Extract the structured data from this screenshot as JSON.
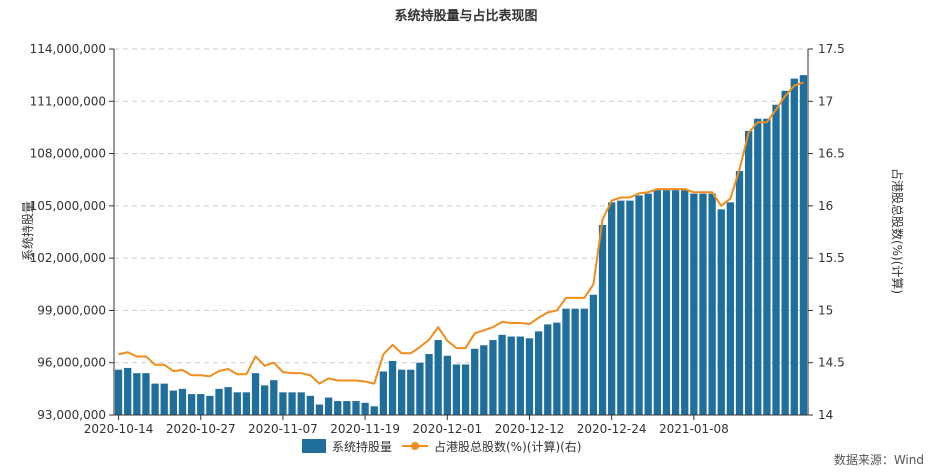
{
  "chart_data": {
    "type": "bar",
    "title": "系统持股量与占比表现图",
    "ylabel": "系统持股量",
    "y2label": "占港股总股数(%)(计算)",
    "source": "数据来源：Wind",
    "legend": {
      "placement": "bottom-center"
    },
    "grid": true,
    "colors": {
      "bar": "#1f6e9c",
      "line": "#f28c1a"
    },
    "ylim": [
      93000000,
      114000000
    ],
    "y_ticks": [
      93000000,
      96000000,
      99000000,
      102000000,
      105000000,
      108000000,
      111000000,
      114000000
    ],
    "y_tick_labels": [
      "93,000,000",
      "96,000,000",
      "99,000,000",
      "102,000,000",
      "105,000,000",
      "108,000,000",
      "111,000,000",
      "114,000,000"
    ],
    "y2lim": [
      14,
      17.5
    ],
    "y2_ticks": [
      14,
      14.5,
      15,
      15.5,
      16,
      16.5,
      17,
      17.5
    ],
    "y2_tick_labels": [
      "14",
      "14.5",
      "15",
      "15.5",
      "16",
      "16.5",
      "17",
      "17.5"
    ],
    "x_tick_labels": [
      {
        "index": 0,
        "label": "2020-10-14"
      },
      {
        "index": 9,
        "label": "2020-10-27"
      },
      {
        "index": 18,
        "label": "2020-11-07"
      },
      {
        "index": 27,
        "label": "2020-11-19"
      },
      {
        "index": 36,
        "label": "2020-12-01"
      },
      {
        "index": 45,
        "label": "2020-12-12"
      },
      {
        "index": 54,
        "label": "2020-12-24"
      },
      {
        "index": 63,
        "label": "2021-01-08"
      }
    ],
    "series": [
      {
        "name": "系统持股量",
        "type": "bar",
        "axis": "left",
        "values": [
          95600000,
          95700000,
          95400000,
          95400000,
          94800000,
          94800000,
          94400000,
          94500000,
          94200000,
          94200000,
          94100000,
          94500000,
          94600000,
          94300000,
          94300000,
          95400000,
          94700000,
          95000000,
          94300000,
          94300000,
          94300000,
          94100000,
          93600000,
          94000000,
          93800000,
          93800000,
          93800000,
          93700000,
          93500000,
          95500000,
          96100000,
          95600000,
          95600000,
          96000000,
          96500000,
          97300000,
          96400000,
          95900000,
          95900000,
          96800000,
          97000000,
          97300000,
          97600000,
          97500000,
          97500000,
          97400000,
          97800000,
          98200000,
          98300000,
          99100000,
          99100000,
          99100000,
          99900000,
          103900000,
          105200000,
          105300000,
          105300000,
          105600000,
          105700000,
          105900000,
          105900000,
          105900000,
          105900000,
          105700000,
          105700000,
          105700000,
          104800000,
          105200000,
          107000000,
          109300000,
          110000000,
          110000000,
          110800000,
          111600000,
          112300000,
          112500000
        ]
      },
      {
        "name": "占港股总股数(%)(计算)(右)",
        "type": "line",
        "axis": "right",
        "values": [
          14.58,
          14.6,
          14.56,
          14.56,
          14.48,
          14.48,
          14.42,
          14.43,
          14.38,
          14.38,
          14.37,
          14.42,
          14.44,
          14.39,
          14.39,
          14.56,
          14.47,
          14.5,
          14.41,
          14.4,
          14.4,
          14.38,
          14.3,
          14.35,
          14.33,
          14.33,
          14.33,
          14.32,
          14.3,
          14.58,
          14.67,
          14.59,
          14.59,
          14.65,
          14.72,
          14.84,
          14.71,
          14.64,
          14.64,
          14.78,
          14.81,
          14.84,
          14.89,
          14.88,
          14.88,
          14.87,
          14.93,
          14.98,
          15.0,
          15.12,
          15.12,
          15.12,
          15.25,
          15.87,
          16.05,
          16.08,
          16.08,
          16.12,
          16.13,
          16.16,
          16.16,
          16.16,
          16.16,
          16.13,
          16.13,
          16.13,
          16.0,
          16.07,
          16.35,
          16.7,
          16.8,
          16.8,
          16.92,
          17.05,
          17.15,
          17.18
        ]
      }
    ]
  }
}
